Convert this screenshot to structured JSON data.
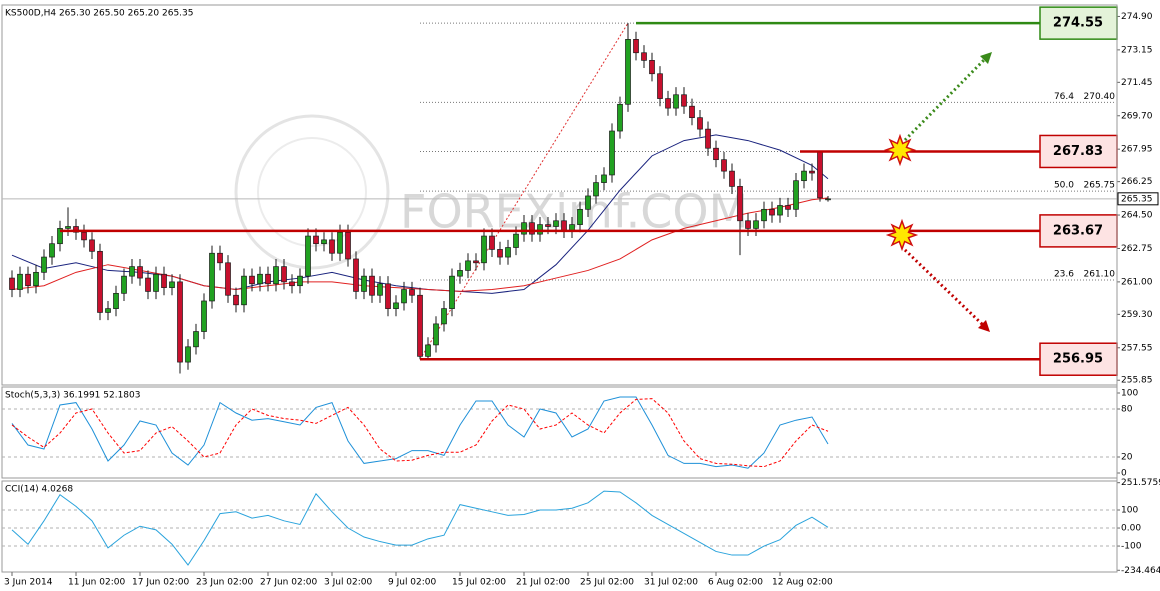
{
  "chart_data": [
    {
      "type": "candlestick",
      "title": "KS500D,H4 265.30 265.50 265.20 265.35",
      "watermark": "FOREXimf.COM",
      "categories": [
        "3 Jun 2014",
        null,
        null,
        null,
        null,
        null,
        null,
        null,
        "11 Jun 02:00",
        null,
        null,
        null,
        null,
        null,
        null,
        null,
        "17 Jun 02:00",
        null,
        null,
        null,
        null,
        null,
        null,
        null,
        "23 Jun 02:00",
        null,
        null,
        null,
        null,
        null,
        null,
        null,
        "27 Jun 02:00",
        null,
        null,
        null,
        null,
        null,
        null,
        null,
        "3 Jul 02:00",
        null,
        null,
        null,
        null,
        null,
        null,
        null,
        "9 Jul 02:00",
        null,
        null,
        null,
        null,
        null,
        null,
        null,
        "15 Jul 02:00",
        null,
        null,
        null,
        null,
        null,
        null,
        null,
        "21 Jul 02:00",
        null,
        null,
        null,
        null,
        null,
        null,
        null,
        "25 Jul 02:00",
        null,
        null,
        null,
        null,
        null,
        null,
        null,
        "31 Jul 02:00",
        null,
        null,
        null,
        null,
        null,
        null,
        null,
        "6 Aug 02:00",
        null,
        null,
        null,
        null,
        null,
        null,
        null,
        "12 Aug 02:00",
        null,
        null,
        null,
        null,
        null,
        null
      ],
      "open": [
        261.2,
        260.6,
        261.4,
        260.8,
        261.5,
        262.3,
        263.0,
        263.8,
        263.9,
        263.6,
        263.2,
        262.6,
        259.4,
        259.6,
        260.4,
        261.3,
        261.8,
        261.2,
        260.5,
        261.4,
        260.7,
        261.0,
        256.8,
        257.6,
        258.4,
        260.0,
        262.5,
        262.0,
        260.3,
        259.8,
        261.3,
        260.9,
        261.4,
        260.9,
        261.8,
        261.0,
        260.8,
        261.3,
        263.4,
        263.0,
        263.2,
        262.5,
        263.6,
        262.2,
        260.5,
        261.3,
        260.3,
        260.9,
        259.6,
        259.9,
        260.6,
        260.3,
        257.1,
        257.7,
        258.8,
        259.6,
        261.3,
        261.6,
        262.1,
        262.0,
        263.4,
        262.7,
        262.3,
        262.8,
        263.5,
        264.1,
        263.5,
        264.0,
        263.9,
        264.2,
        263.7,
        264.0,
        264.8,
        265.5,
        266.2,
        266.6,
        268.9,
        270.3,
        273.7,
        273.0,
        272.6,
        271.9,
        270.6,
        270.1,
        270.8,
        270.2,
        269.6,
        269.0,
        268.0,
        267.4,
        266.8,
        266.0,
        264.2,
        263.8,
        264.2,
        264.8,
        264.5,
        265.0,
        264.8,
        266.3,
        266.8,
        267.8,
        265.3
      ],
      "high": [
        261.6,
        261.8,
        261.8,
        261.9,
        262.7,
        263.4,
        264.2,
        264.9,
        264.3,
        264.0,
        263.6,
        263.0,
        260.0,
        260.8,
        261.7,
        262.2,
        262.2,
        261.6,
        261.8,
        261.8,
        261.4,
        261.4,
        258.0,
        258.8,
        260.4,
        262.9,
        262.9,
        262.4,
        260.7,
        261.7,
        261.7,
        261.8,
        261.8,
        262.2,
        262.2,
        261.4,
        261.7,
        263.8,
        263.8,
        263.6,
        263.6,
        264.0,
        264.0,
        262.6,
        261.7,
        261.7,
        261.3,
        261.3,
        260.3,
        261.0,
        261.0,
        260.7,
        258.1,
        259.2,
        260.0,
        261.7,
        262.0,
        262.5,
        262.5,
        263.8,
        263.8,
        263.1,
        263.2,
        263.9,
        264.5,
        264.5,
        264.4,
        264.4,
        264.6,
        264.6,
        264.4,
        265.2,
        265.9,
        266.6,
        267.0,
        269.3,
        270.7,
        274.55,
        274.1,
        273.4,
        273.0,
        272.3,
        271.0,
        271.2,
        271.2,
        270.6,
        270.0,
        269.4,
        268.4,
        267.8,
        267.2,
        266.4,
        264.6,
        264.6,
        265.2,
        265.2,
        265.4,
        265.4,
        266.7,
        267.2,
        267.2,
        267.83,
        265.5
      ],
      "low": [
        260.2,
        260.2,
        260.4,
        260.4,
        261.1,
        261.9,
        262.6,
        263.4,
        263.2,
        262.8,
        262.2,
        259.0,
        259.0,
        259.2,
        260.0,
        260.9,
        260.8,
        260.1,
        260.1,
        260.3,
        260.3,
        256.2,
        256.4,
        257.2,
        258.0,
        259.6,
        261.6,
        259.9,
        259.4,
        259.4,
        260.5,
        260.5,
        260.5,
        260.5,
        260.6,
        260.4,
        260.4,
        260.9,
        262.6,
        262.6,
        262.1,
        262.1,
        261.8,
        260.1,
        260.1,
        259.9,
        259.9,
        259.2,
        259.2,
        259.5,
        259.9,
        256.95,
        257.0,
        257.3,
        258.4,
        259.2,
        260.9,
        261.2,
        261.6,
        261.6,
        262.3,
        261.9,
        261.9,
        262.4,
        263.1,
        263.1,
        263.1,
        263.5,
        263.5,
        263.3,
        263.3,
        263.6,
        264.4,
        265.1,
        265.8,
        266.2,
        268.5,
        269.9,
        272.6,
        272.2,
        271.5,
        270.2,
        269.7,
        269.7,
        269.8,
        269.2,
        268.6,
        267.6,
        267.0,
        266.4,
        265.6,
        262.4,
        263.4,
        263.4,
        263.8,
        264.1,
        264.1,
        264.4,
        264.4,
        265.9,
        266.3,
        265.2,
        265.2
      ],
      "close": [
        260.6,
        261.4,
        260.8,
        261.5,
        262.3,
        263.0,
        263.8,
        263.9,
        263.6,
        263.2,
        262.6,
        259.4,
        259.6,
        260.4,
        261.3,
        261.8,
        261.2,
        260.5,
        261.4,
        260.7,
        261.0,
        256.8,
        257.6,
        258.4,
        260.0,
        262.5,
        262.0,
        260.3,
        259.8,
        261.3,
        260.9,
        261.4,
        260.9,
        261.8,
        261.0,
        260.8,
        261.3,
        263.4,
        263.0,
        263.2,
        262.5,
        263.6,
        262.2,
        260.5,
        261.3,
        260.3,
        260.9,
        259.6,
        259.9,
        260.6,
        260.3,
        257.1,
        257.7,
        258.8,
        259.6,
        261.3,
        261.6,
        262.1,
        262.0,
        263.4,
        262.7,
        262.3,
        262.8,
        263.5,
        264.1,
        263.5,
        264.0,
        263.9,
        264.2,
        263.7,
        264.0,
        264.8,
        265.5,
        266.2,
        266.6,
        268.9,
        270.3,
        273.7,
        273.0,
        272.6,
        271.9,
        270.6,
        270.1,
        270.8,
        270.2,
        269.6,
        269.0,
        268.0,
        267.4,
        266.8,
        266.0,
        264.2,
        263.8,
        264.2,
        264.8,
        264.5,
        265.0,
        264.8,
        266.3,
        266.8,
        266.7,
        265.4,
        265.35
      ],
      "up_color": "#21a121",
      "down_color": "#c8102e",
      "series": [
        {
          "color": "#1a237e",
          "x": [
            0,
            4,
            8,
            12,
            16,
            20,
            24,
            28,
            32,
            36,
            40,
            44,
            48,
            52,
            56,
            60,
            64,
            68,
            72,
            76,
            80,
            84,
            88,
            92,
            96,
            100,
            102
          ],
          "values": [
            262.4,
            261.7,
            262.0,
            261.6,
            261.5,
            261.3,
            260.8,
            260.6,
            261.0,
            261.2,
            261.5,
            261.1,
            260.8,
            260.6,
            260.5,
            260.4,
            260.6,
            261.9,
            263.7,
            265.8,
            267.6,
            268.4,
            268.7,
            268.4,
            267.9,
            267.1,
            266.4
          ]
        },
        {
          "color": "#e02020",
          "x": [
            0,
            4,
            8,
            12,
            16,
            20,
            24,
            28,
            32,
            36,
            40,
            44,
            48,
            52,
            56,
            60,
            64,
            68,
            72,
            76,
            80,
            84,
            88,
            92,
            96,
            100,
            102
          ],
          "values": [
            260.6,
            260.8,
            261.5,
            261.9,
            261.6,
            261.3,
            260.8,
            260.6,
            260.8,
            261.0,
            261.0,
            260.8,
            260.7,
            260.6,
            260.5,
            260.6,
            260.8,
            261.2,
            261.6,
            262.2,
            263.2,
            263.8,
            264.2,
            264.6,
            264.9,
            265.3,
            265.4
          ]
        }
      ],
      "ylim": [
        255.6,
        275.5
      ],
      "yticks": [
        {
          "value": 274.9,
          "label": "274.90"
        },
        273.15,
        271.45,
        {
          "value": 269.7,
          "label": "269.70"
        },
        267.95,
        266.25,
        {
          "value": 264.5,
          "label": "264.50"
        },
        262.75,
        {
          "value": 261,
          "label": "261.00"
        },
        {
          "value": 259.3,
          "label": "259.30"
        },
        257.55,
        255.85
      ],
      "current_price": 265.35,
      "levels": [
        {
          "value": 274.55,
          "color": "#2f8a14"
        },
        {
          "value": 267.83,
          "color": "#c00000"
        },
        {
          "value": 263.67,
          "color": "#c00000"
        },
        {
          "value": 256.95,
          "color": "#c00000"
        }
      ],
      "fib_labels": [
        {
          "ratio": 76.4,
          "price": {
            "value": 270.4,
            "label": "270.40"
          }
        },
        {
          "ratio": {
            "value": 50,
            "label": "50.0"
          },
          "price": 265.75
        },
        {
          "ratio": 23.6,
          "price": {
            "value": 261.1,
            "label": "261.10"
          }
        }
      ]
    },
    {
      "type": "line",
      "title": "Stoch(5,3,3) 36.1991 52.1803",
      "series": [
        {
          "color": "#1e90d8",
          "x": [
            0,
            2,
            4,
            6,
            8,
            10,
            12,
            14,
            16,
            18,
            20,
            22,
            24,
            26,
            28,
            30,
            32,
            34,
            36,
            38,
            40,
            42,
            44,
            46,
            48,
            50,
            52,
            54,
            56,
            58,
            60,
            62,
            64,
            66,
            68,
            70,
            72,
            74,
            76,
            78,
            80,
            82,
            84,
            86,
            88,
            90,
            92,
            94,
            96,
            98,
            100,
            102
          ],
          "values": [
            62,
            35,
            30,
            85,
            88,
            55,
            15,
            35,
            65,
            60,
            25,
            10,
            35,
            88,
            75,
            66,
            68,
            64,
            60,
            82,
            88,
            40,
            12,
            15,
            18,
            28,
            28,
            22,
            60,
            90,
            90,
            60,
            45,
            80,
            75,
            45,
            55,
            90,
            95,
            95,
            60,
            22,
            12,
            12,
            8,
            10,
            6,
            25,
            60,
            66,
            70,
            36.1991
          ]
        },
        {
          "color": "#ff0000",
          "dash": true,
          "x": [
            0,
            2,
            4,
            6,
            8,
            10,
            12,
            14,
            16,
            18,
            20,
            22,
            24,
            26,
            28,
            30,
            32,
            34,
            36,
            38,
            40,
            42,
            44,
            46,
            48,
            50,
            52,
            54,
            56,
            58,
            60,
            62,
            64,
            66,
            68,
            70,
            72,
            74,
            76,
            78,
            80,
            82,
            84,
            86,
            88,
            90,
            92,
            94,
            96,
            98,
            100,
            102
          ],
          "values": [
            60,
            45,
            32,
            50,
            75,
            80,
            50,
            25,
            28,
            50,
            58,
            40,
            20,
            25,
            60,
            80,
            72,
            68,
            66,
            62,
            72,
            82,
            60,
            30,
            15,
            16,
            22,
            26,
            26,
            35,
            65,
            85,
            80,
            55,
            60,
            75,
            60,
            50,
            75,
            92,
            93,
            75,
            40,
            18,
            12,
            11,
            9,
            8,
            15,
            40,
            60,
            52.1803
          ]
        }
      ],
      "ylim": [
        -6.25,
        107.5
      ],
      "yticks": [
        100,
        80,
        20,
        0
      ]
    },
    {
      "type": "line",
      "title": "CCI(14) 4.0268",
      "series": [
        {
          "color": "#2aa3dc",
          "x": [
            0,
            2,
            4,
            6,
            8,
            10,
            12,
            14,
            16,
            18,
            20,
            22,
            24,
            26,
            28,
            30,
            32,
            34,
            36,
            38,
            40,
            42,
            44,
            46,
            48,
            50,
            52,
            54,
            56,
            58,
            60,
            62,
            64,
            66,
            68,
            70,
            72,
            74,
            76,
            78,
            80,
            82,
            84,
            86,
            88,
            90,
            92,
            94,
            96,
            98,
            100,
            102
          ],
          "values": [
            -10,
            -90,
            40,
            185,
            120,
            40,
            -110,
            -40,
            10,
            -10,
            -90,
            -205,
            -70,
            80,
            90,
            55,
            70,
            40,
            20,
            190,
            90,
            0,
            -50,
            -75,
            -95,
            -95,
            -60,
            -40,
            130,
            110,
            90,
            70,
            75,
            100,
            100,
            110,
            140,
            205,
            200,
            140,
            70,
            20,
            -30,
            -80,
            -130,
            -150,
            -150,
            -100,
            -65,
            15,
            60,
            4.0268
          ]
        }
      ],
      "ylim": [
        -244,
        261
      ],
      "yticks": [
        251.5759,
        100,
        {
          "value": 0,
          "label": "0.00"
        },
        -100,
        -234.4641
      ]
    }
  ]
}
